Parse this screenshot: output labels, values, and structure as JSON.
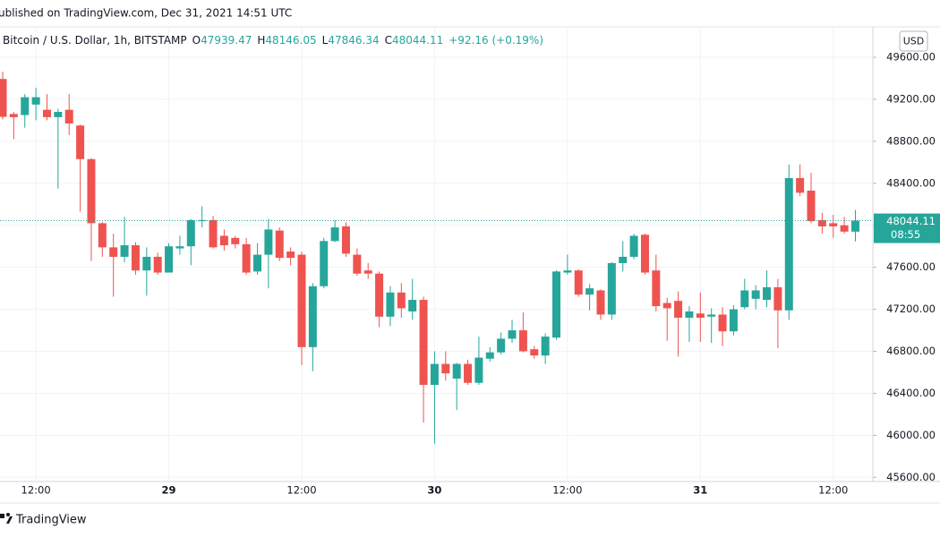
{
  "header": {
    "published": "ublished on TradingView.com, Dec 31, 2021 14:51 UTC"
  },
  "footer": {
    "brand": "TradingView"
  },
  "chart_data": {
    "type": "candlestick",
    "title": "Bitcoin / U.S. Dollar, 1h, BITSTAMP",
    "ohlc_labels": [
      "O",
      "H",
      "L",
      "C"
    ],
    "change": "+92.16 (+0.19%)",
    "currency": "USD",
    "countdown": "08:55",
    "up_color": "#26a69a",
    "down_color": "#ef5350",
    "grid": true,
    "categories": [
      null,
      null,
      null,
      "12:00",
      null,
      null,
      null,
      null,
      null,
      null,
      null,
      null,
      null,
      null,
      null,
      "29",
      null,
      null,
      null,
      null,
      null,
      null,
      null,
      null,
      null,
      null,
      null,
      "12:00",
      null,
      null,
      null,
      null,
      null,
      null,
      null,
      null,
      null,
      null,
      null,
      "30",
      null,
      null,
      null,
      null,
      null,
      null,
      null,
      null,
      null,
      null,
      null,
      "12:00",
      null,
      null,
      null,
      null,
      null,
      null,
      null,
      null,
      null,
      null,
      null,
      "31",
      null,
      null,
      null,
      null,
      null,
      null,
      null,
      null,
      null,
      null,
      null,
      "12:00",
      null,
      null
    ],
    "open": [
      49394,
      49060,
      49050,
      49150,
      49100,
      49030,
      49100,
      48950,
      48630,
      48020,
      47790,
      47700,
      47810,
      47570,
      47700,
      47550,
      47780,
      47800,
      48040,
      48050,
      47900,
      47880,
      47820,
      47560,
      47720,
      47950,
      47750,
      47720,
      46840,
      47420,
      47850,
      47990,
      47720,
      47570,
      47540,
      47130,
      47360,
      47180,
      47290,
      46480,
      46680,
      46540,
      46680,
      46500,
      46730,
      46790,
      46920,
      47000,
      46820,
      46760,
      46930,
      47550,
      47570,
      47340,
      47380,
      47150,
      47640,
      47700,
      47910,
      47570,
      47260,
      47280,
      47120,
      47160,
      47130,
      47150,
      46990,
      47220,
      47300,
      47290,
      47410,
      47190,
      48450,
      48330,
      48050,
      48020,
      48000,
      47939.47
    ],
    "high": [
      49463,
      49080,
      49250,
      49310,
      49250,
      49110,
      49250,
      48960,
      48640,
      48030,
      47920,
      48080,
      47840,
      47790,
      47740,
      47830,
      47900,
      48060,
      48180,
      48090,
      47960,
      47900,
      47880,
      47830,
      48060,
      47980,
      47790,
      47750,
      47450,
      47880,
      48050,
      48030,
      47780,
      47640,
      47560,
      47420,
      47450,
      47490,
      47320,
      46800,
      46800,
      46690,
      46720,
      46940,
      46840,
      46980,
      47100,
      47170,
      46850,
      46970,
      47570,
      47720,
      47580,
      47440,
      47390,
      47650,
      47850,
      47920,
      47920,
      47720,
      47310,
      47370,
      47230,
      47360,
      47210,
      47220,
      47240,
      47490,
      47430,
      47570,
      47490,
      48580,
      48580,
      48500,
      48120,
      48100,
      48080,
      48146.05
    ],
    "low": [
      49008,
      48820,
      48930,
      49000,
      49000,
      48350,
      48860,
      48130,
      47660,
      47700,
      47320,
      47650,
      47530,
      47330,
      47530,
      47560,
      47720,
      47620,
      47980,
      47780,
      47760,
      47780,
      47530,
      47530,
      47400,
      47660,
      47620,
      46670,
      46610,
      47400,
      47840,
      47700,
      47520,
      47490,
      47030,
      47040,
      47120,
      47100,
      46120,
      45920,
      46520,
      46240,
      46480,
      46480,
      46700,
      46770,
      46880,
      46790,
      46730,
      46680,
      46910,
      47530,
      47320,
      47190,
      47100,
      47100,
      47560,
      47680,
      47530,
      47180,
      46900,
      46750,
      46890,
      46890,
      46880,
      46850,
      46950,
      47200,
      47200,
      47220,
      46830,
      47100,
      48280,
      48020,
      47920,
      47880,
      47920,
      47846.34
    ],
    "close": [
      49033,
      49030,
      49220,
      49220,
      49030,
      49080,
      48970,
      48630,
      48020,
      47790,
      47700,
      47810,
      47570,
      47700,
      47550,
      47800,
      47800,
      48050,
      48050,
      47790,
      47810,
      47820,
      47550,
      47720,
      47960,
      47690,
      47690,
      46840,
      47420,
      47850,
      47980,
      47730,
      47540,
      47540,
      47130,
      47360,
      47210,
      47290,
      46480,
      46680,
      46590,
      46680,
      46500,
      46740,
      46790,
      46920,
      47000,
      46800,
      46760,
      46940,
      47560,
      47570,
      47340,
      47400,
      47150,
      47640,
      47700,
      47900,
      47550,
      47230,
      47210,
      47120,
      47180,
      47120,
      47150,
      46990,
      47200,
      47380,
      47380,
      47410,
      47190,
      48450,
      48310,
      48040,
      47990,
      47990,
      47940,
      48044.11
    ],
    "ylim": [
      45560,
      49890
    ],
    "yticks": [
      {
        "value": 45600,
        "label": "45600.00"
      },
      {
        "value": 46000,
        "label": "46000.00"
      },
      {
        "value": 46400,
        "label": "46400.00"
      },
      {
        "value": 46800,
        "label": "46800.00"
      },
      {
        "value": 47200,
        "label": "47200.00"
      },
      {
        "value": 47600,
        "label": "47600.00"
      },
      {
        "value": 48000,
        "label": "48000.00"
      },
      {
        "value": 48400,
        "label": "48400.00"
      },
      {
        "value": 48800,
        "label": "48800.00"
      },
      {
        "value": 49200,
        "label": "49200.00"
      },
      {
        "value": 49600,
        "label": "49600.00"
      }
    ]
  }
}
